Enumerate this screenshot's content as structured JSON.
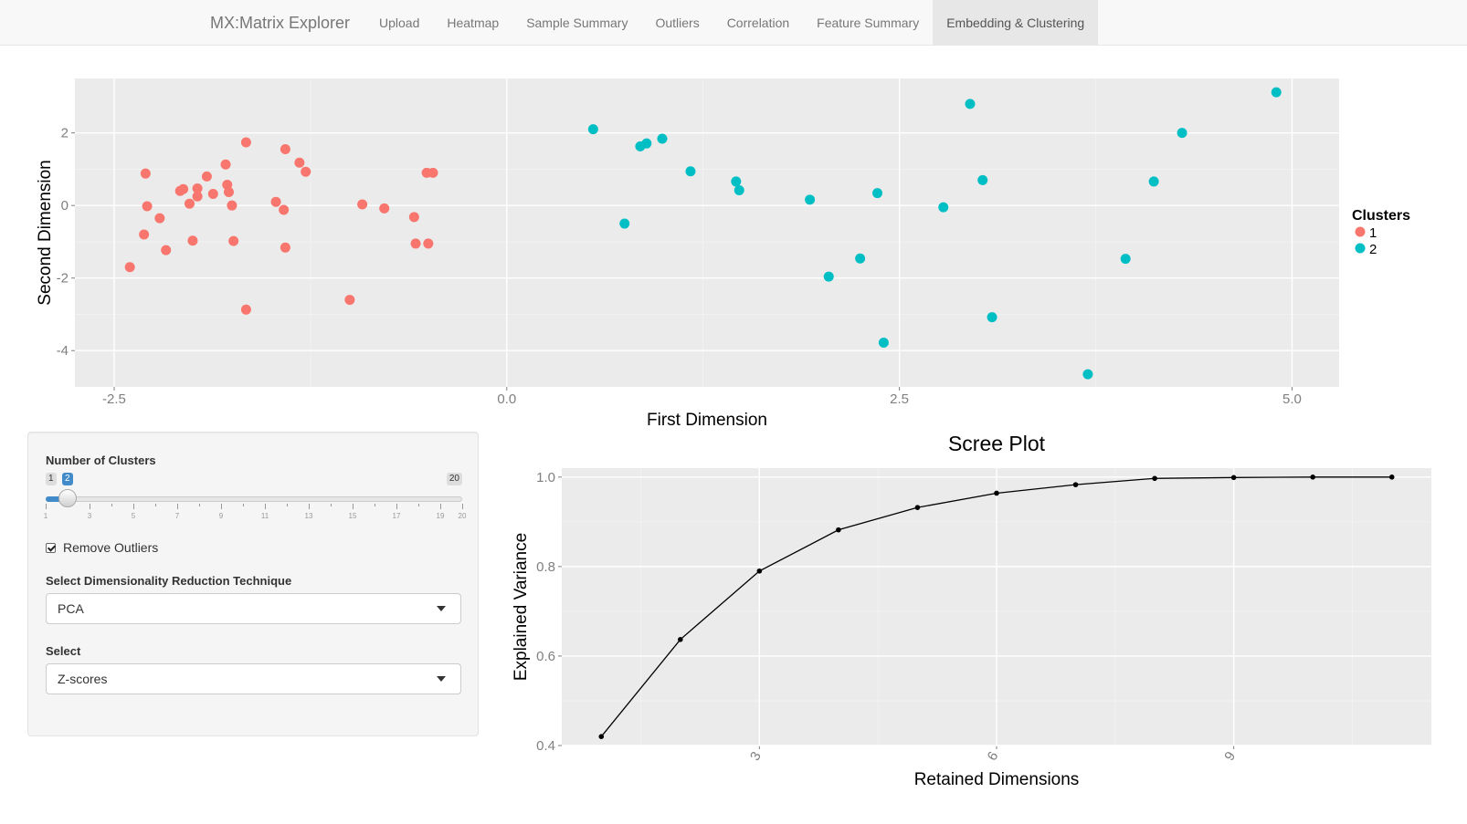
{
  "navbar": {
    "brand": "MX:Matrix Explorer",
    "items": [
      "Upload",
      "Heatmap",
      "Sample Summary",
      "Outliers",
      "Correlation",
      "Feature Summary",
      "Embedding & Clustering"
    ],
    "active_index": 6
  },
  "controls": {
    "clusters_label": "Number of Clusters",
    "slider": {
      "min": 1,
      "max": 20,
      "value": 2,
      "min_label": "1",
      "max_label": "20",
      "value_label": "2",
      "tick_labels": [
        "1",
        "3",
        "5",
        "7",
        "9",
        "11",
        "13",
        "15",
        "17",
        "19",
        "20"
      ]
    },
    "remove_outliers_label": "Remove Outliers",
    "remove_outliers_checked": true,
    "technique_label": "Select Dimensionality Reduction Technique",
    "technique_value": "PCA",
    "select_label": "Select",
    "select_value": "Z-scores"
  },
  "chart_data": [
    {
      "type": "scatter",
      "title": "",
      "xlabel": "First Dimension",
      "ylabel": "Second Dimension",
      "xlim": [
        -2.75,
        5.3
      ],
      "ylim": [
        -5.0,
        3.5
      ],
      "xticks": [
        -2.5,
        0.0,
        2.5,
        5.0
      ],
      "xtick_labels": [
        "-2.5",
        "0.0",
        "2.5",
        "5.0"
      ],
      "yticks": [
        -4,
        -2,
        0,
        2
      ],
      "ytick_labels": [
        "-4",
        "-2",
        "0",
        "2"
      ],
      "grid": true,
      "legend_title": "Clusters",
      "legend_position": "right",
      "series": [
        {
          "name": "1",
          "color": "#F8766D",
          "x": [
            -2.4,
            -2.3,
            -2.31,
            -2.29,
            -2.21,
            -2.17,
            -2.08,
            -2.06,
            -2.02,
            -1.97,
            -1.97,
            -2.0,
            -1.91,
            -1.87,
            -1.79,
            -1.78,
            -1.77,
            -1.75,
            -1.74,
            -1.66,
            -1.66,
            -1.47,
            -1.42,
            -1.41,
            -1.41,
            -1.32,
            -1.28,
            -1.0,
            -0.92,
            -0.78,
            -0.59,
            -0.58,
            -0.51,
            -0.5,
            -0.47
          ],
          "y": [
            -1.7,
            0.88,
            -0.8,
            -0.02,
            -0.35,
            -1.23,
            0.4,
            0.45,
            0.05,
            0.47,
            0.25,
            -0.97,
            0.8,
            0.32,
            1.13,
            0.57,
            0.37,
            0.0,
            -0.98,
            1.74,
            -2.87,
            0.1,
            -0.12,
            1.55,
            -1.16,
            1.18,
            0.93,
            -2.6,
            0.03,
            -0.08,
            -0.32,
            -1.05,
            0.9,
            -1.05,
            0.9
          ]
        },
        {
          "name": "2",
          "color": "#00BFC4",
          "x": [
            0.55,
            0.75,
            0.85,
            0.89,
            0.99,
            1.17,
            1.46,
            1.48,
            1.93,
            2.05,
            2.25,
            2.36,
            2.4,
            2.78,
            2.95,
            3.03,
            3.09,
            3.7,
            3.94,
            4.12,
            4.3,
            4.9
          ],
          "y": [
            2.1,
            -0.5,
            1.63,
            1.71,
            1.84,
            0.94,
            0.66,
            0.42,
            0.16,
            -1.96,
            -1.46,
            0.34,
            -3.78,
            -0.05,
            2.8,
            0.7,
            -3.08,
            -4.65,
            -1.47,
            0.66,
            2.0,
            3.12
          ]
        }
      ]
    },
    {
      "type": "line",
      "title": "Scree Plot",
      "xlabel": "Retained Dimensions",
      "ylabel": "Explained Variance",
      "xlim": [
        0.5,
        11.5
      ],
      "ylim": [
        0.4,
        1.02
      ],
      "xticks": [
        3,
        6,
        9
      ],
      "xtick_labels": [
        "3",
        "6",
        "9"
      ],
      "yticks": [
        0.4,
        0.6,
        0.8,
        1.0
      ],
      "ytick_labels": [
        "0.4",
        "0.6",
        "0.8",
        "1.0"
      ],
      "grid": true,
      "x": [
        1,
        2,
        3,
        4,
        5,
        6,
        7,
        8,
        9,
        10,
        11
      ],
      "values": [
        0.42,
        0.637,
        0.79,
        0.882,
        0.932,
        0.964,
        0.983,
        0.997,
        0.999,
        1.0,
        1.0
      ]
    }
  ]
}
